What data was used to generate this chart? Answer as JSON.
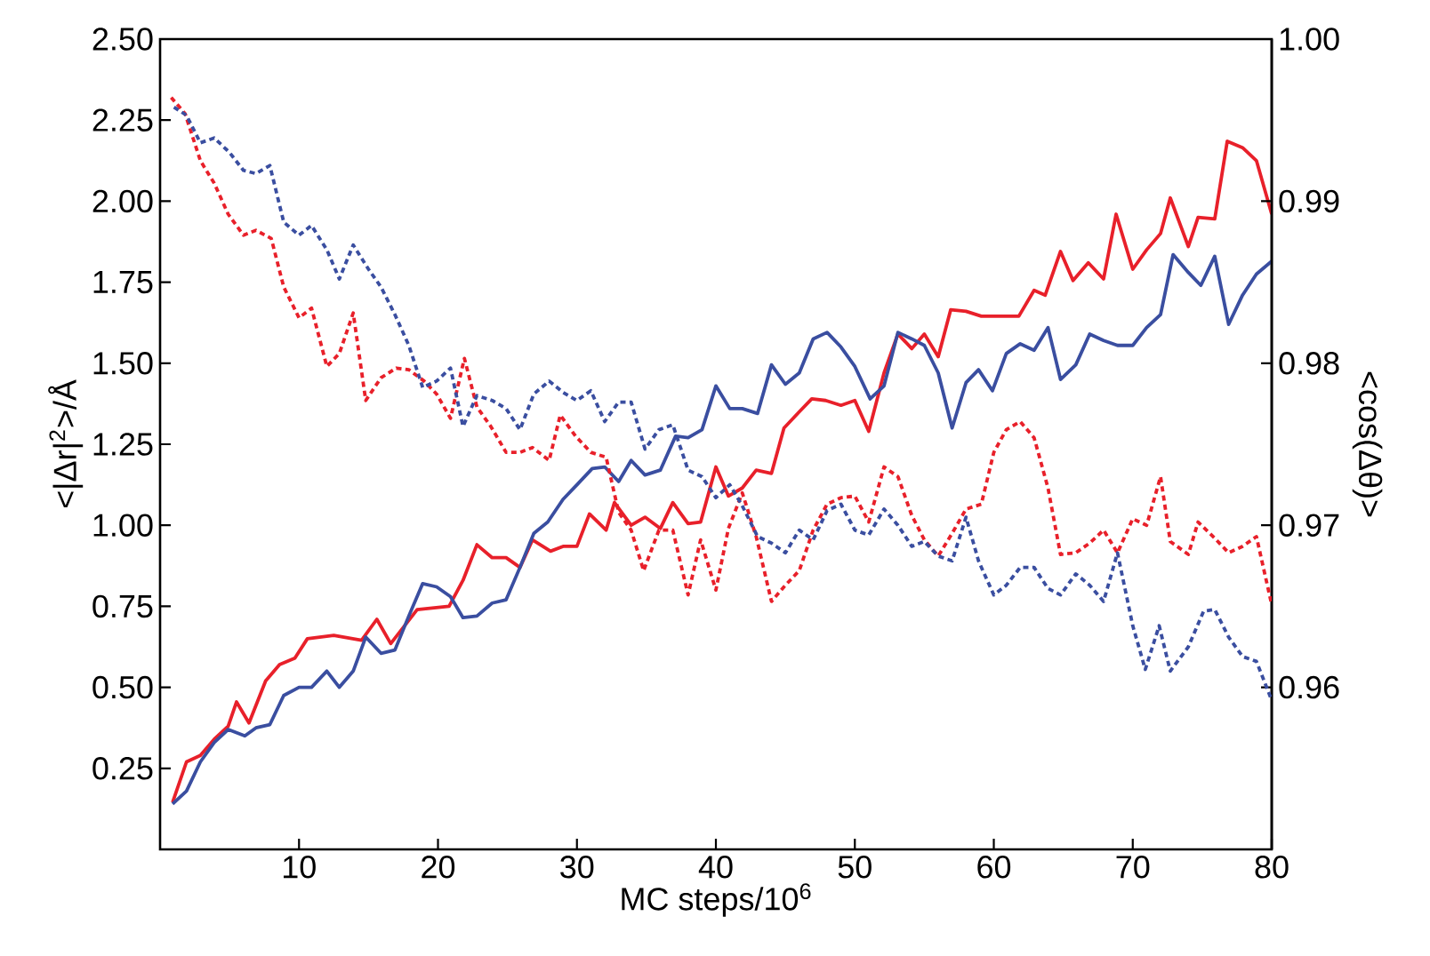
{
  "chart_data": {
    "type": "line",
    "xlabel": "MC steps/10$^{6}$",
    "ylabel": "<|Δr|$^{2}$>/Å",
    "y2label": "<cos(Δθ)>",
    "xlim": [
      0,
      80
    ],
    "ylim": [
      0,
      2.5
    ],
    "y2lim": [
      0.95,
      1.0
    ],
    "xticks": [
      10,
      20,
      30,
      40,
      50,
      60,
      70,
      80
    ],
    "yticks": [
      0.25,
      {
        "value": 0.5,
        "label": "0.50"
      },
      0.75,
      {
        "value": 1.0,
        "label": "1.00"
      },
      1.25,
      {
        "value": 1.5,
        "label": "1.50"
      },
      1.75,
      {
        "value": 2.0,
        "label": "2.00"
      },
      2.25,
      {
        "value": 2.5,
        "label": "2.50"
      }
    ],
    "y2ticks": [
      0.96,
      0.97,
      0.98,
      0.99,
      {
        "value": 1.0,
        "label": "1.00"
      }
    ],
    "series": [
      {
        "color": "#e8202a",
        "line_style": "solid",
        "x": [
          0.9,
          1.9,
          2.9,
          3.9,
          4.9,
          5.5,
          6.4,
          7.6,
          8.6,
          9.7,
          10.6,
          12.5,
          14.5,
          15.6,
          16.6,
          18.5,
          20.8,
          21.8,
          22.8,
          23.9,
          24.9,
          25.9,
          26.8,
          28.1,
          29.0,
          30.0,
          30.9,
          32.1,
          32.7,
          33.9,
          34.9,
          36.0,
          36.9,
          38.0,
          38.9,
          40.0,
          40.9,
          41.9,
          42.9,
          44.0,
          44.9,
          46.0,
          46.9,
          47.9,
          49.0,
          50.0,
          51.0,
          52.1,
          53.1,
          54.1,
          55.0,
          56.0,
          56.9,
          58.0,
          59.1,
          60.9,
          61.8,
          62.9,
          63.7,
          64.8,
          65.7,
          66.8,
          67.9,
          68.8,
          70.0,
          71.0,
          72.0,
          72.7,
          74.0,
          74.7,
          75.9,
          76.8,
          77.9,
          78.9,
          80.0
        ],
        "values": [
          0.145,
          0.27,
          0.29,
          0.34,
          0.38,
          0.455,
          0.39,
          0.52,
          0.57,
          0.59,
          0.65,
          0.66,
          0.645,
          0.71,
          0.635,
          0.74,
          0.75,
          0.83,
          0.94,
          0.9,
          0.9,
          0.87,
          0.955,
          0.92,
          0.935,
          0.935,
          1.035,
          0.985,
          1.07,
          1.0,
          1.025,
          0.99,
          1.07,
          1.005,
          1.01,
          1.18,
          1.09,
          1.115,
          1.17,
          1.16,
          1.3,
          1.35,
          1.39,
          1.385,
          1.37,
          1.385,
          1.29,
          1.47,
          1.59,
          1.545,
          1.59,
          1.52,
          1.665,
          1.66,
          1.645,
          1.645,
          1.645,
          1.725,
          1.71,
          1.845,
          1.755,
          1.81,
          1.76,
          1.96,
          1.79,
          1.85,
          1.9,
          2.01,
          1.86,
          1.95,
          1.945,
          2.185,
          2.165,
          2.125,
          1.96
        ]
      },
      {
        "color": "#3a4ea0",
        "line_style": "solid",
        "x": [
          0.9,
          1.9,
          2.9,
          3.9,
          4.9,
          6.1,
          6.9,
          7.9,
          8.9,
          10.0,
          10.9,
          12.0,
          12.9,
          13.9,
          14.8,
          15.9,
          16.9,
          17.9,
          18.9,
          19.9,
          20.9,
          21.8,
          22.8,
          23.9,
          24.9,
          25.9,
          26.9,
          27.9,
          29.0,
          30.0,
          31.1,
          32.0,
          33.0,
          33.9,
          34.9,
          36.0,
          37.1,
          38.0,
          39.0,
          40.0,
          41.0,
          41.9,
          43.0,
          44.0,
          45.0,
          46.0,
          47.0,
          48.0,
          49.0,
          50.0,
          51.1,
          52.1,
          53.1,
          54.1,
          55.0,
          56.0,
          57.0,
          58.0,
          58.9,
          59.9,
          60.9,
          61.9,
          62.9,
          63.9,
          64.8,
          65.9,
          66.9,
          67.9,
          68.9,
          70.0,
          71.0,
          72.0,
          72.9,
          74.0,
          74.9,
          75.9,
          76.9,
          77.9,
          78.9,
          80.0
        ],
        "values": [
          0.14,
          0.18,
          0.27,
          0.33,
          0.37,
          0.35,
          0.375,
          0.385,
          0.475,
          0.5,
          0.5,
          0.55,
          0.5,
          0.55,
          0.655,
          0.605,
          0.615,
          0.72,
          0.82,
          0.81,
          0.78,
          0.715,
          0.72,
          0.76,
          0.77,
          0.87,
          0.975,
          1.01,
          1.08,
          1.125,
          1.175,
          1.18,
          1.135,
          1.2,
          1.155,
          1.17,
          1.275,
          1.27,
          1.295,
          1.43,
          1.36,
          1.36,
          1.345,
          1.495,
          1.435,
          1.47,
          1.575,
          1.595,
          1.55,
          1.49,
          1.39,
          1.43,
          1.595,
          1.575,
          1.555,
          1.47,
          1.3,
          1.44,
          1.48,
          1.415,
          1.53,
          1.56,
          1.54,
          1.61,
          1.45,
          1.495,
          1.59,
          1.57,
          1.555,
          1.555,
          1.61,
          1.65,
          1.835,
          1.78,
          1.74,
          1.83,
          1.62,
          1.71,
          1.775,
          1.815
        ]
      },
      {
        "color": "#e8202a",
        "line_style": "dotted",
        "axis": "y2",
        "x": [
          0.8,
          1.8,
          2.9,
          3.9,
          4.9,
          6.0,
          6.9,
          8.0,
          8.9,
          10.0,
          10.9,
          12.0,
          12.9,
          13.9,
          14.8,
          15.9,
          17.0,
          17.9,
          19.0,
          19.9,
          20.9,
          21.9,
          22.8,
          23.8,
          24.9,
          25.9,
          26.8,
          28.0,
          28.8,
          29.9,
          31.0,
          32.1,
          33.0,
          33.9,
          34.8,
          35.9,
          36.9,
          38.0,
          38.9,
          40.0,
          40.9,
          41.9,
          42.9,
          44.0,
          45.0,
          46.0,
          47.0,
          48.0,
          49.0,
          50.0,
          51.0,
          52.1,
          53.1,
          54.1,
          55.0,
          56.0,
          57.0,
          58.0,
          59.1,
          60.0,
          60.9,
          61.9,
          62.9,
          63.9,
          64.8,
          65.9,
          66.9,
          67.9,
          68.9,
          70.0,
          71.0,
          72.0,
          72.7,
          74.0,
          74.7,
          75.9,
          76.9,
          77.9,
          78.9,
          80.0
        ],
        "values": [
          0.9964,
          0.9954,
          0.9925,
          0.9911,
          0.9892,
          0.9879,
          0.9882,
          0.9877,
          0.9847,
          0.9828,
          0.9834,
          0.9798,
          0.9806,
          0.9831,
          0.9777,
          0.9791,
          0.9797,
          0.9796,
          0.9789,
          0.9781,
          0.9766,
          0.9803,
          0.9773,
          0.9761,
          0.9745,
          0.9745,
          0.9748,
          0.974,
          0.9768,
          0.9755,
          0.9745,
          0.9742,
          0.9708,
          0.9697,
          0.9672,
          0.9697,
          0.9697,
          0.9657,
          0.9691,
          0.966,
          0.9698,
          0.972,
          0.9693,
          0.9653,
          0.9663,
          0.9672,
          0.9697,
          0.9713,
          0.9717,
          0.9718,
          0.9702,
          0.9736,
          0.973,
          0.9706,
          0.9691,
          0.9681,
          0.9695,
          0.971,
          0.9713,
          0.9745,
          0.9759,
          0.9764,
          0.9754,
          0.9723,
          0.9682,
          0.9683,
          0.9689,
          0.9697,
          0.9683,
          0.9704,
          0.97,
          0.973,
          0.969,
          0.9682,
          0.9702,
          0.9692,
          0.9683,
          0.9687,
          0.9693,
          0.9651
        ]
      },
      {
        "color": "#3a4ea0",
        "line_style": "dotted",
        "axis": "y2",
        "x": [
          1.0,
          1.9,
          2.9,
          3.9,
          5.0,
          6.0,
          6.9,
          7.9,
          8.9,
          10.0,
          10.9,
          12.0,
          12.9,
          13.9,
          15.0,
          15.9,
          16.9,
          17.9,
          18.9,
          19.9,
          20.9,
          21.8,
          22.8,
          23.9,
          24.9,
          25.9,
          26.9,
          28.0,
          29.0,
          30.0,
          31.0,
          32.0,
          33.0,
          33.9,
          34.9,
          35.9,
          36.9,
          38.0,
          39.0,
          40.0,
          41.0,
          41.9,
          43.0,
          44.0,
          45.0,
          46.0,
          47.0,
          48.0,
          49.0,
          50.0,
          51.0,
          52.1,
          53.1,
          54.1,
          55.0,
          56.0,
          57.0,
          58.0,
          58.9,
          60.0,
          60.9,
          61.9,
          62.9,
          63.9,
          64.8,
          65.9,
          66.9,
          67.9,
          68.9,
          70.0,
          70.9,
          71.9,
          72.7,
          74.0,
          75.1,
          75.9,
          76.9,
          77.9,
          78.9,
          80.0
        ],
        "values": [
          0.9958,
          0.9953,
          0.9936,
          0.9939,
          0.993,
          0.9919,
          0.9917,
          0.9922,
          0.9887,
          0.9879,
          0.9885,
          0.987,
          0.9852,
          0.9873,
          0.9858,
          0.9847,
          0.983,
          0.9811,
          0.9785,
          0.9789,
          0.9797,
          0.9761,
          0.978,
          0.9777,
          0.9772,
          0.9759,
          0.9781,
          0.9789,
          0.9782,
          0.9777,
          0.9783,
          0.9764,
          0.9776,
          0.9776,
          0.9747,
          0.9759,
          0.9762,
          0.9734,
          0.973,
          0.9717,
          0.9725,
          0.9712,
          0.9693,
          0.9689,
          0.9683,
          0.9697,
          0.9691,
          0.9709,
          0.9713,
          0.9697,
          0.9694,
          0.971,
          0.97,
          0.9687,
          0.969,
          0.9681,
          0.9678,
          0.9705,
          0.9678,
          0.9657,
          0.9663,
          0.9674,
          0.9674,
          0.9661,
          0.9657,
          0.967,
          0.9663,
          0.9653,
          0.9683,
          0.9638,
          0.9611,
          0.9638,
          0.961,
          0.9625,
          0.9647,
          0.9648,
          0.9631,
          0.9619,
          0.9616,
          0.9592
        ]
      }
    ]
  }
}
